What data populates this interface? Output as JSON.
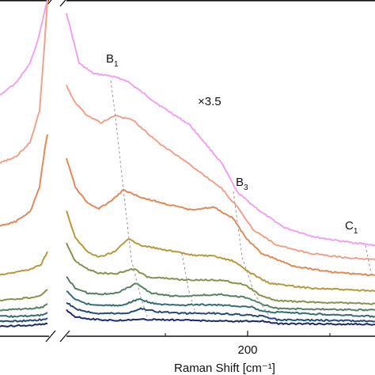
{
  "chart_data": {
    "type": "line",
    "title": "",
    "xlabel": "Raman Shift [cm⁻¹]",
    "ylabel": "",
    "x_ticks": [
      "200"
    ],
    "scale_annotation": "×3.5",
    "grid": false,
    "legend": "none",
    "broken_x_axis": true,
    "peak_labels": [
      {
        "id": "B1",
        "base": "B",
        "sub": "1"
      },
      {
        "id": "B3",
        "base": "B",
        "sub": "3"
      },
      {
        "id": "C1",
        "base": "C",
        "sub": "1"
      }
    ],
    "series": [
      {
        "color": "#f0a3ec"
      },
      {
        "color": "#f1a28f"
      },
      {
        "color": "#e0895a"
      },
      {
        "color": "#b69a3e"
      },
      {
        "color": "#88924e"
      },
      {
        "color": "#568161"
      },
      {
        "color": "#356d71"
      },
      {
        "color": "#244b75"
      },
      {
        "color": "#1c2a68"
      }
    ]
  }
}
